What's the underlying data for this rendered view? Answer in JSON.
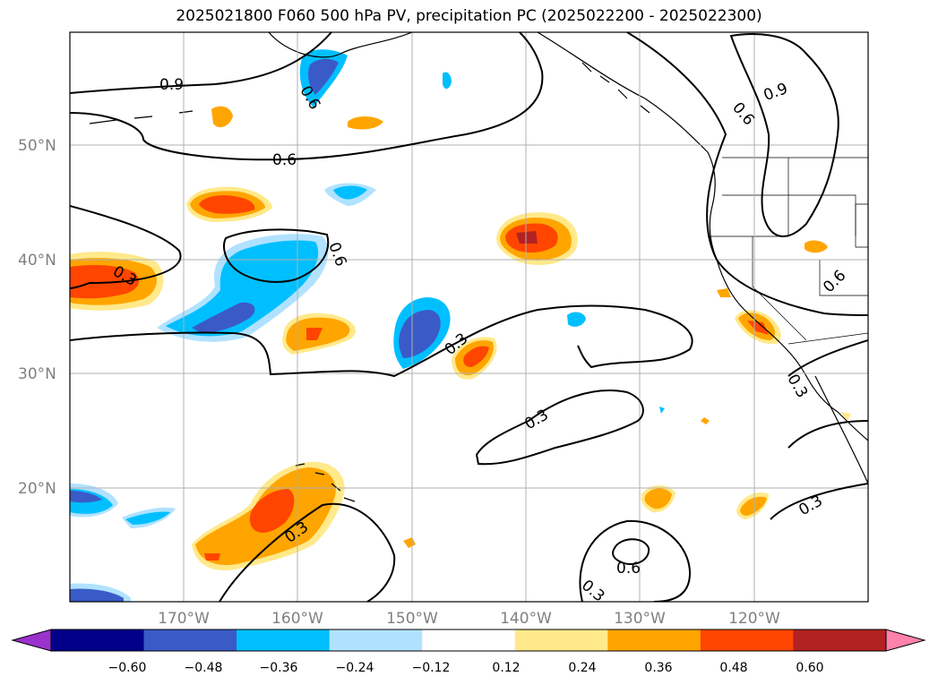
{
  "title": "2025021800 F060 500 hPa PV, precipitation PC (2025022200 - 2025022300)",
  "map": {
    "lat_labels": [
      "50°N",
      "40°N",
      "30°N",
      "20°N"
    ],
    "lon_labels": [
      "170°W",
      "160°W",
      "150°W",
      "140°W",
      "130°W",
      "120°W"
    ],
    "contour_labels": [
      "0.9",
      "0.6",
      "0.6",
      "0.9",
      "0.6",
      "0.3",
      "0.6",
      "0.3",
      "0.3",
      "0.3",
      "0.3",
      "0.3",
      "0.6",
      "0.3",
      "0.6",
      "0.3"
    ]
  },
  "colorbar": {
    "ticks": [
      "−0.60",
      "−0.48",
      "−0.36",
      "−0.24",
      "−0.12",
      "0.12",
      "0.24",
      "0.36",
      "0.48",
      "0.60"
    ],
    "colors": [
      "#9a32cd",
      "#00008b",
      "#3a5bc7",
      "#00bfff",
      "#b0e2ff",
      "#ffffff",
      "#ffe98a",
      "#ffa500",
      "#ff4500",
      "#b22222",
      "#ff82ab"
    ]
  }
}
